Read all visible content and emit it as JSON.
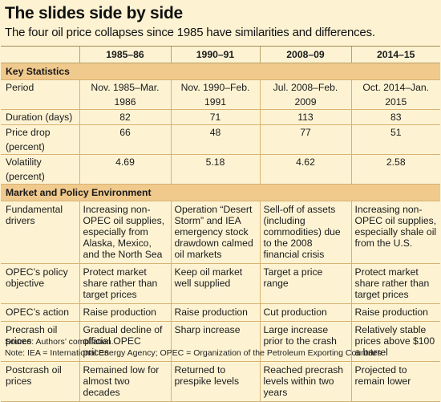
{
  "title": "The slides side by side",
  "subtitle": "The four oil price collapses since 1985 have similarities and differences.",
  "columns": [
    "",
    "1985–86",
    "1990–91",
    "2008–09",
    "2014–15"
  ],
  "section_key_stats": "Key Statistics",
  "key_stats": [
    {
      "label": "Period",
      "values": [
        "Nov. 1985–Mar. 1986",
        "Nov. 1990–Feb. 1991",
        "Jul. 2008–Feb. 2009",
        "Oct. 2014–Jan. 2015"
      ]
    },
    {
      "label": "Duration (days)",
      "values": [
        "82",
        "71",
        "113",
        "83"
      ]
    },
    {
      "label": "Price drop (percent)",
      "values": [
        "66",
        "48",
        "77",
        "51"
      ]
    },
    {
      "label": "Volatility (percent)",
      "values": [
        "4.69",
        "5.18",
        "4.62",
        "2.58"
      ]
    }
  ],
  "section_market": "Market and Policy Environment",
  "market": [
    {
      "label": "Fundamental drivers",
      "values": [
        "Increasing non-OPEC oil supplies, especially from Alaska, Mexico, and the North Sea",
        "Operation “Desert Storm” and IEA emergency stock drawdown calmed oil markets",
        "Sell-off of assets (including commodities) due to the 2008 financial crisis",
        "Increasing non-OPEC oil supplies, especially shale oil from the U.S."
      ]
    },
    {
      "label": "OPEC’s policy objective",
      "values": [
        "Protect market share rather than target prices",
        "Keep oil market well supplied",
        "Target a price range",
        "Protect market share rather than target prices"
      ]
    },
    {
      "label": "OPEC’s action",
      "values": [
        "Raise production",
        "Raise production",
        "Cut production",
        "Raise production"
      ]
    },
    {
      "label": "Precrash oil prices",
      "values": [
        "Gradual decline of official OPEC prices",
        "Sharp increase",
        "Large increase prior to the crash",
        "Relatively stable prices above $100 a barrel"
      ]
    },
    {
      "label": "Postcrash oil prices",
      "values": [
        "Remained low for almost two decades",
        "Returned to prespike levels",
        "Reached precrash levels within two years",
        "Projected to remain lower"
      ]
    }
  ],
  "source_note": "Source: Authors’ compilation.",
  "abbrev_note": "Note: IEA = International Energy Agency; OPEC = Organization of the Petroleum Exporting Countries."
}
